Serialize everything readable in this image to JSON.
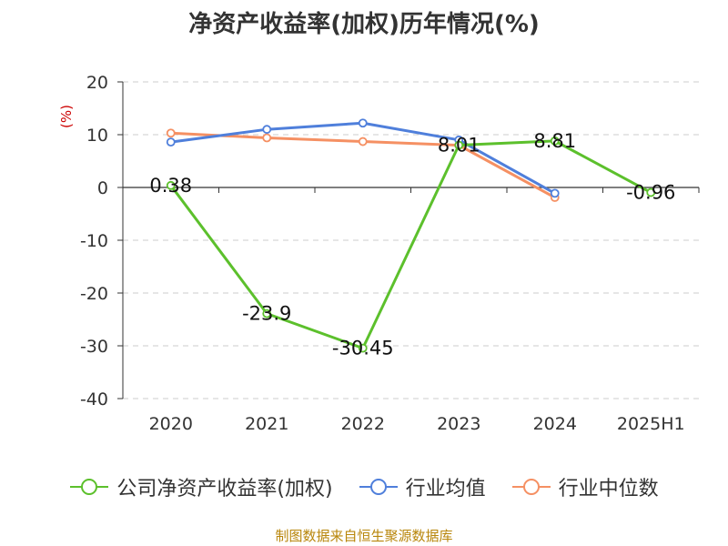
{
  "chart_data": {
    "type": "line",
    "title": "净资产收益率(加权)历年情况(%)",
    "ylabel": "(%)",
    "categories": [
      "2020",
      "2021",
      "2022",
      "2023",
      "2024",
      "2025H1"
    ],
    "ylim": [
      -40,
      20
    ],
    "yticks": [
      20,
      10,
      0,
      -10,
      -20,
      -30,
      -40
    ],
    "grid": true,
    "legend_position": "bottom",
    "series": [
      {
        "name": "公司净资产收益率(加权)",
        "color": "#5cc02c",
        "values": [
          0.38,
          -23.9,
          -30.45,
          8.01,
          8.81,
          -0.96
        ],
        "labels": [
          "0.38",
          "-23.9",
          "-30.45",
          "8.01",
          "8.81",
          "-0.96"
        ]
      },
      {
        "name": "行业均值",
        "color": "#4f7fdb",
        "values": [
          8.6,
          11.0,
          12.2,
          9.0,
          -1.1,
          null
        ]
      },
      {
        "name": "行业中位数",
        "color": "#f59063",
        "values": [
          10.3,
          9.4,
          8.7,
          8.0,
          -1.9,
          null
        ]
      }
    ]
  },
  "source": "制图数据来自恒生聚源数据库"
}
